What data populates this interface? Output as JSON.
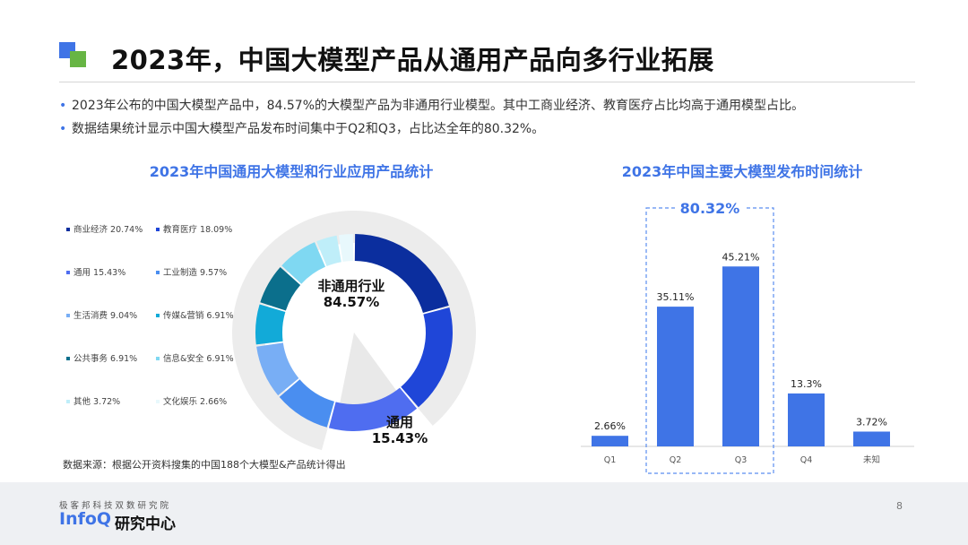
{
  "title": "2023年，中国大模型产品从通用产品向多行业拓展",
  "bullets": [
    "2023年公布的中国大模型产品中，84.57%的大模型产品为非通用行业模型。其中工商业经济、教育医疗占比均高于通用模型占比。",
    "数据结果统计显示中国大模型产品发布时间集中于Q2和Q3，占比达全年的80.32%。"
  ],
  "source_note": "数据来源：根据公开资料搜集的中国188个大模型&产品统计得出",
  "footer": {
    "subtitle": "极客邦科技双数研究院",
    "brand": "InfoQ",
    "brand_suffix": "研究中心",
    "page_number": "8"
  },
  "colors": {
    "accent": "#3f74e6",
    "green": "#67b544"
  },
  "chart_data": [
    {
      "type": "pie",
      "title": "2023年中国通用大模型和行业应用产品统计",
      "legend_position": "left",
      "slices": [
        {
          "label": "商业经济",
          "value": 20.74,
          "legend": "商业经济 20.74%",
          "color": "#0b2e9e"
        },
        {
          "label": "教育医疗",
          "value": 18.09,
          "legend": "教育医疗 18.09%",
          "color": "#1f46d8"
        },
        {
          "label": "通用",
          "value": 15.43,
          "legend": "通用 15.43%",
          "color": "#4f6df0"
        },
        {
          "label": "工业制造",
          "value": 9.57,
          "legend": "工业制造 9.57%",
          "color": "#4a8ef0"
        },
        {
          "label": "生活消费",
          "value": 9.04,
          "legend": "生活消费 9.04%",
          "color": "#78aef5"
        },
        {
          "label": "传媒&营销",
          "value": 6.91,
          "legend": "传媒&营销 6.91%",
          "color": "#12aad8"
        },
        {
          "label": "公共事务",
          "value": 6.91,
          "legend": "公共事务 6.91%",
          "color": "#0b6f8c"
        },
        {
          "label": "信息&安全",
          "value": 6.91,
          "legend": "信息&安全 6.91%",
          "color": "#7fd8f2"
        },
        {
          "label": "其他",
          "value": 3.72,
          "legend": "其他  3.72%",
          "color": "#bfeef9"
        },
        {
          "label": "文化娱乐",
          "value": 2.66,
          "legend": "文化娱乐 2.66%",
          "color": "#e8f8fc"
        }
      ],
      "callouts": [
        {
          "label": "非通用行业",
          "value": "84.57%"
        },
        {
          "label": "通用",
          "value": "15.43%"
        }
      ]
    },
    {
      "type": "bar",
      "title": "2023年中国主要大模型发布时间统计",
      "categories": [
        "Q1",
        "Q2",
        "Q3",
        "Q4",
        "未知"
      ],
      "values": [
        2.66,
        35.11,
        45.21,
        13.3,
        3.72
      ],
      "value_labels": [
        "2.66%",
        "35.11%",
        "45.21%",
        "13.3%",
        "3.72%"
      ],
      "ylim": [
        0,
        50
      ],
      "bar_color": "#3f74e6",
      "grid": false,
      "highlight": {
        "categories": [
          "Q2",
          "Q3"
        ],
        "label": "80.32%"
      }
    }
  ]
}
